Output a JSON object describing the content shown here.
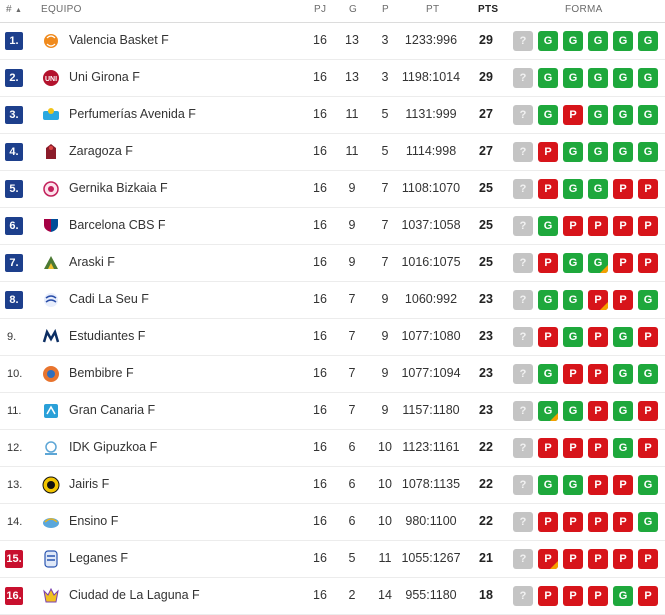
{
  "header": {
    "rank": "#",
    "team": "EQUIPO",
    "pj": "PJ",
    "g": "G",
    "p": "P",
    "pt": "PT",
    "pts": "PTS",
    "forma": "FORMA",
    "sort_glyph": "▲"
  },
  "colors": {
    "rank_blue": "#1d3f8c",
    "rank_red": "#c8102e",
    "win": "#1ea83c",
    "loss": "#d7141a",
    "draw_mark": "#f5a000",
    "pending": "#c4c4c4"
  },
  "rows": [
    {
      "rank": "1.",
      "rank_style": "blue",
      "team": "Valencia Basket F",
      "logo": "valencia-logo",
      "pj": "16",
      "g": "13",
      "p": "3",
      "pt": "1233:996",
      "pts": "29",
      "form": [
        "?",
        "G",
        "G",
        "G",
        "G",
        "G"
      ],
      "draw": []
    },
    {
      "rank": "2.",
      "rank_style": "blue",
      "team": "Uni Girona F",
      "logo": "girona-logo",
      "pj": "16",
      "g": "13",
      "p": "3",
      "pt": "1198:1014",
      "pts": "29",
      "form": [
        "?",
        "G",
        "G",
        "G",
        "G",
        "G"
      ],
      "draw": []
    },
    {
      "rank": "3.",
      "rank_style": "blue",
      "team": "Perfumerías Avenida F",
      "logo": "avenida-logo",
      "pj": "16",
      "g": "11",
      "p": "5",
      "pt": "1131:999",
      "pts": "27",
      "form": [
        "?",
        "G",
        "P",
        "G",
        "G",
        "G"
      ],
      "draw": []
    },
    {
      "rank": "4.",
      "rank_style": "blue",
      "team": "Zaragoza F",
      "logo": "zaragoza-logo",
      "pj": "16",
      "g": "11",
      "p": "5",
      "pt": "1114:998",
      "pts": "27",
      "form": [
        "?",
        "P",
        "G",
        "G",
        "G",
        "G"
      ],
      "draw": []
    },
    {
      "rank": "5.",
      "rank_style": "blue",
      "team": "Gernika Bizkaia F",
      "logo": "gernika-logo",
      "pj": "16",
      "g": "9",
      "p": "7",
      "pt": "1108:1070",
      "pts": "25",
      "form": [
        "?",
        "P",
        "G",
        "G",
        "P",
        "P"
      ],
      "draw": []
    },
    {
      "rank": "6.",
      "rank_style": "blue",
      "team": "Barcelona CBS F",
      "logo": "barcelona-logo",
      "pj": "16",
      "g": "9",
      "p": "7",
      "pt": "1037:1058",
      "pts": "25",
      "form": [
        "?",
        "G",
        "P",
        "P",
        "P",
        "P"
      ],
      "draw": []
    },
    {
      "rank": "7.",
      "rank_style": "blue",
      "team": "Araski F",
      "logo": "araski-logo",
      "pj": "16",
      "g": "9",
      "p": "7",
      "pt": "1016:1075",
      "pts": "25",
      "form": [
        "?",
        "P",
        "G",
        "G",
        "P",
        "P"
      ],
      "draw": [
        3
      ]
    },
    {
      "rank": "8.",
      "rank_style": "blue",
      "team": "Cadi La Seu F",
      "logo": "cadi-logo",
      "pj": "16",
      "g": "7",
      "p": "9",
      "pt": "1060:992",
      "pts": "23",
      "form": [
        "?",
        "G",
        "G",
        "P",
        "P",
        "G"
      ],
      "draw": [
        3
      ]
    },
    {
      "rank": "9.",
      "rank_style": "plain",
      "team": "Estudiantes F",
      "logo": "estudiantes-logo",
      "pj": "16",
      "g": "7",
      "p": "9",
      "pt": "1077:1080",
      "pts": "23",
      "form": [
        "?",
        "P",
        "G",
        "P",
        "G",
        "P"
      ],
      "draw": []
    },
    {
      "rank": "10.",
      "rank_style": "plain",
      "team": "Bembibre F",
      "logo": "bembibre-logo",
      "pj": "16",
      "g": "7",
      "p": "9",
      "pt": "1077:1094",
      "pts": "23",
      "form": [
        "?",
        "G",
        "P",
        "P",
        "G",
        "G"
      ],
      "draw": []
    },
    {
      "rank": "11.",
      "rank_style": "plain",
      "team": "Gran Canaria F",
      "logo": "grancanaria-logo",
      "pj": "16",
      "g": "7",
      "p": "9",
      "pt": "1157:1180",
      "pts": "23",
      "form": [
        "?",
        "G",
        "G",
        "P",
        "G",
        "P"
      ],
      "draw": [
        1
      ]
    },
    {
      "rank": "12.",
      "rank_style": "plain",
      "team": "IDK Gipuzkoa F",
      "logo": "gipuzkoa-logo",
      "pj": "16",
      "g": "6",
      "p": "10",
      "pt": "1123:1161",
      "pts": "22",
      "form": [
        "?",
        "P",
        "P",
        "P",
        "G",
        "P"
      ],
      "draw": []
    },
    {
      "rank": "13.",
      "rank_style": "plain",
      "team": "Jairis F",
      "logo": "jairis-logo",
      "pj": "16",
      "g": "6",
      "p": "10",
      "pt": "1078:1135",
      "pts": "22",
      "form": [
        "?",
        "G",
        "G",
        "P",
        "P",
        "G"
      ],
      "draw": []
    },
    {
      "rank": "14.",
      "rank_style": "plain",
      "team": "Ensino F",
      "logo": "ensino-logo",
      "pj": "16",
      "g": "6",
      "p": "10",
      "pt": "980:1100",
      "pts": "22",
      "form": [
        "?",
        "P",
        "P",
        "P",
        "P",
        "G"
      ],
      "draw": []
    },
    {
      "rank": "15.",
      "rank_style": "red",
      "team": "Leganes F",
      "logo": "leganes-logo",
      "pj": "16",
      "g": "5",
      "p": "11",
      "pt": "1055:1267",
      "pts": "21",
      "form": [
        "?",
        "P",
        "P",
        "P",
        "P",
        "P"
      ],
      "draw": [
        1
      ]
    },
    {
      "rank": "16.",
      "rank_style": "red",
      "team": "Ciudad de La Laguna F",
      "logo": "laguna-logo",
      "pj": "16",
      "g": "2",
      "p": "14",
      "pt": "955:1180",
      "pts": "18",
      "form": [
        "?",
        "P",
        "P",
        "P",
        "G",
        "P"
      ],
      "draw": []
    }
  ]
}
